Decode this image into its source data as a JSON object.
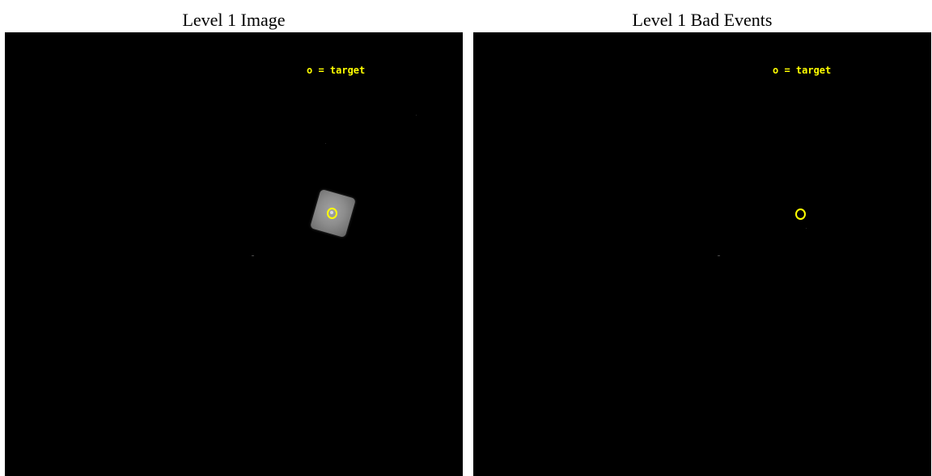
{
  "panels": [
    {
      "title": "Level 1 Image",
      "legend": "o = target"
    },
    {
      "title": "Level 1 Bad Events",
      "legend": "o = target"
    }
  ],
  "colors": {
    "background": "#000000",
    "marker": "#ffff00",
    "exposure_tile": "#8d8d8d"
  },
  "icons": {
    "target_marker": "circle-icon"
  }
}
